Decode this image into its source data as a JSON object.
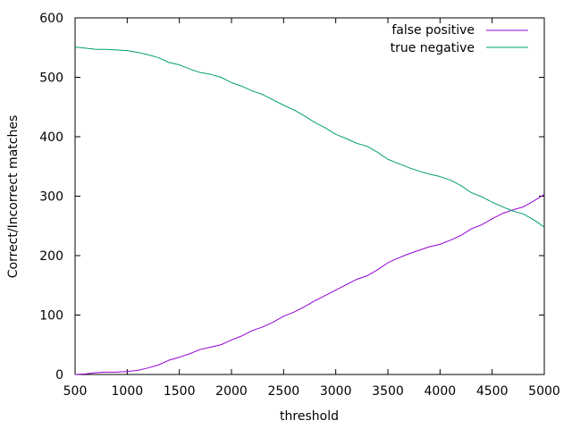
{
  "chart_data": {
    "type": "line",
    "title": "",
    "xlabel": "threshold",
    "ylabel": "Correct/Incorrect matches",
    "xlim": [
      500,
      5000
    ],
    "ylim": [
      0,
      600
    ],
    "xticks": [
      500,
      1000,
      1500,
      2000,
      2500,
      3000,
      3500,
      4000,
      4500,
      5000
    ],
    "yticks": [
      0,
      100,
      200,
      300,
      400,
      500,
      600
    ],
    "grid": false,
    "legend_position": "top-right",
    "x": [
      500,
      600,
      700,
      800,
      900,
      1000,
      1100,
      1200,
      1300,
      1400,
      1500,
      1600,
      1700,
      1800,
      1900,
      2000,
      2100,
      2200,
      2300,
      2400,
      2500,
      2600,
      2700,
      2800,
      2900,
      3000,
      3100,
      3200,
      3300,
      3400,
      3500,
      3600,
      3700,
      3800,
      3900,
      4000,
      4100,
      4200,
      4300,
      4400,
      4500,
      4600,
      4700,
      4800,
      4900,
      5000
    ],
    "series": [
      {
        "name": "false positive",
        "color": "#9400d3",
        "values": [
          0,
          1,
          3,
          4,
          4,
          5,
          7,
          11,
          16,
          24,
          29,
          35,
          42,
          46,
          50,
          58,
          65,
          74,
          80,
          88,
          98,
          105,
          114,
          124,
          133,
          142,
          151,
          160,
          166,
          176,
          188,
          196,
          203,
          209,
          215,
          219,
          226,
          234,
          245,
          252,
          262,
          271,
          277,
          282,
          292,
          303
        ]
      },
      {
        "name": "true negative",
        "color": "#009e73",
        "values": [
          551,
          549,
          547,
          547,
          546,
          545,
          542,
          538,
          533,
          525,
          521,
          514,
          508,
          505,
          500,
          491,
          485,
          477,
          471,
          462,
          453,
          445,
          435,
          424,
          415,
          404,
          397,
          389,
          384,
          374,
          362,
          355,
          348,
          342,
          337,
          333,
          327,
          318,
          306,
          299,
          290,
          282,
          275,
          270,
          260,
          248
        ]
      }
    ]
  }
}
